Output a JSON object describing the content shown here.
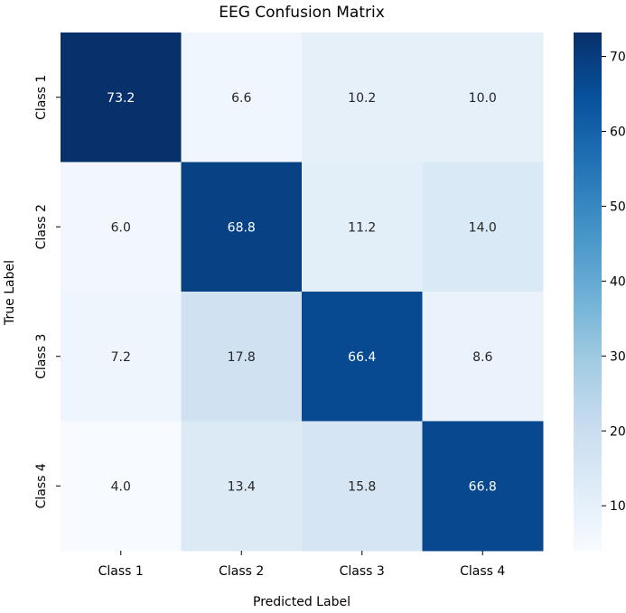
{
  "chart_data": {
    "type": "heatmap",
    "title": "EEG Confusion Matrix",
    "xlabel": "Predicted Label",
    "ylabel": "True Label",
    "x_categories": [
      "Class 1",
      "Class 2",
      "Class 3",
      "Class 4"
    ],
    "y_categories": [
      "Class 1",
      "Class 2",
      "Class 3",
      "Class 4"
    ],
    "values": [
      [
        73.2,
        6.6,
        10.2,
        10.0
      ],
      [
        6.0,
        68.8,
        11.2,
        14.0
      ],
      [
        7.2,
        17.8,
        66.4,
        8.6
      ],
      [
        4.0,
        13.4,
        15.8,
        66.8
      ]
    ],
    "cell_labels": [
      [
        "73.2",
        "6.6",
        "10.2",
        "10.0"
      ],
      [
        "6.0",
        "68.8",
        "11.2",
        "14.0"
      ],
      [
        "7.2",
        "17.8",
        "66.4",
        "8.6"
      ],
      [
        "4.0",
        "13.4",
        "15.8",
        "66.8"
      ]
    ],
    "colormap": "Blues",
    "colormap_stops": [
      "#f7fbff",
      "#deebf7",
      "#c6dbef",
      "#9ecae1",
      "#6baed6",
      "#4292c6",
      "#2171b5",
      "#08519c",
      "#08306b"
    ],
    "color_range": [
      4.0,
      73.2
    ],
    "colorbar": {
      "ticks": [
        10,
        20,
        30,
        40,
        50,
        60,
        70
      ],
      "tick_labels": [
        "10",
        "20",
        "30",
        "40",
        "50",
        "60",
        "70"
      ]
    },
    "text_colors": {
      "light": "#ffffff",
      "dark": "#262626"
    },
    "legend": "right colorbar",
    "grid": false
  }
}
